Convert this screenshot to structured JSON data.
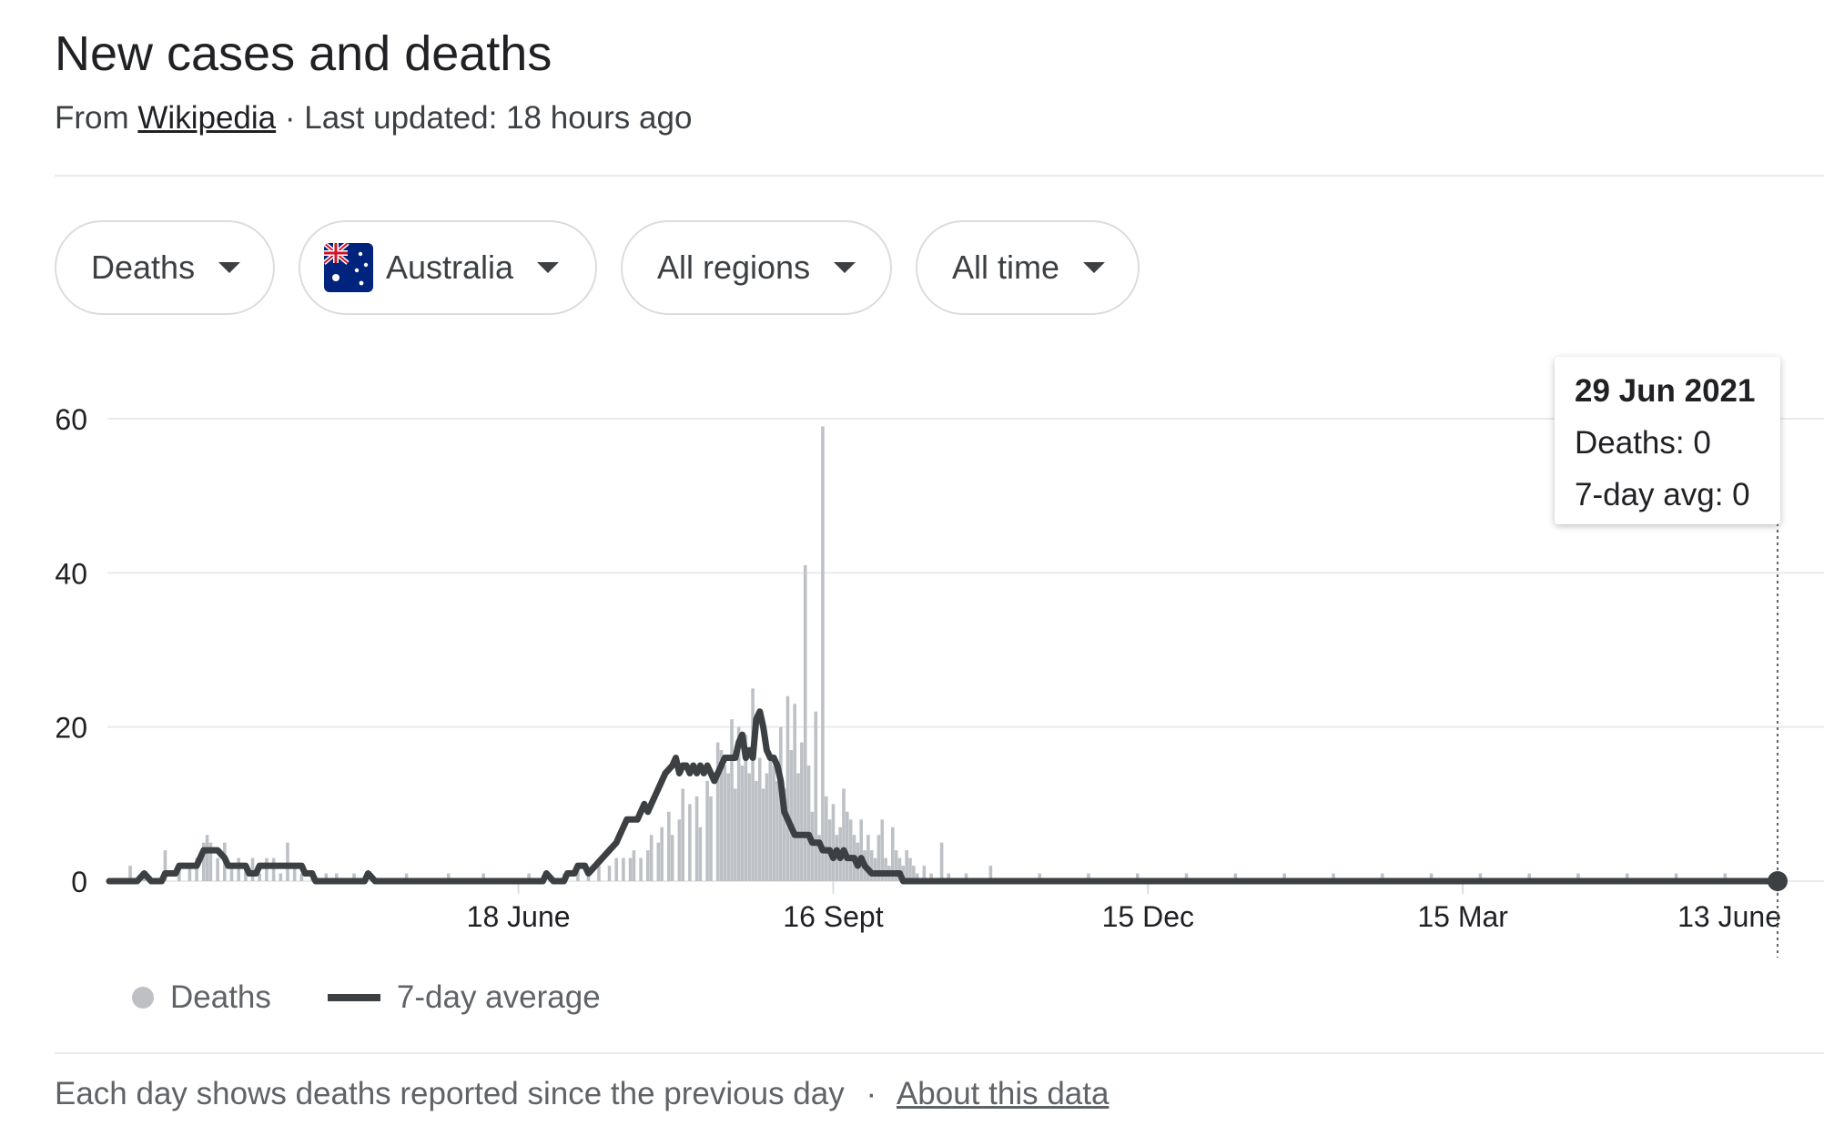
{
  "header": {
    "title": "New cases and deaths",
    "source_prefix": "From",
    "source_link": "Wikipedia",
    "updated": "· Last updated: 18 hours ago"
  },
  "filters": {
    "metric": "Deaths",
    "country": "Australia",
    "region": "All regions",
    "period": "All time"
  },
  "tooltip": {
    "date": "29 Jun 2021",
    "deaths": "Deaths: 0",
    "avg": "7-day avg: 0"
  },
  "legend": {
    "bars_label": "Deaths",
    "line_label": "7-day average"
  },
  "footer": {
    "note": "Each day shows deaths reported since the previous day",
    "separator": "·",
    "about_link": "About this data"
  },
  "colors": {
    "bars": "#bdc1c6",
    "line": "#3c4043",
    "grid": "#e8eaed"
  },
  "chart_data": {
    "type": "bar",
    "ylim": [
      0,
      60
    ],
    "yticks": [
      0,
      20,
      40,
      60
    ],
    "x_ticks": [
      {
        "label": "18 June",
        "day": 117
      },
      {
        "label": "16 Sept",
        "day": 207
      },
      {
        "label": "15 Dec",
        "day": 297
      },
      {
        "label": "15 Mar",
        "day": 387
      },
      {
        "label": "13 June",
        "day": 477
      }
    ],
    "x_start_date": "2020-02-21",
    "x_end_date": "2021-06-29",
    "series": [
      {
        "name": "Deaths",
        "kind": "bars",
        "points": [
          [
            6,
            2
          ],
          [
            10,
            1
          ],
          [
            16,
            4
          ],
          [
            20,
            2
          ],
          [
            23,
            2
          ],
          [
            25,
            3
          ],
          [
            27,
            5
          ],
          [
            28,
            6
          ],
          [
            29,
            5
          ],
          [
            31,
            3
          ],
          [
            33,
            5
          ],
          [
            35,
            2
          ],
          [
            37,
            3
          ],
          [
            39,
            2
          ],
          [
            41,
            3
          ],
          [
            43,
            1
          ],
          [
            45,
            3
          ],
          [
            47,
            3
          ],
          [
            49,
            1
          ],
          [
            51,
            5
          ],
          [
            53,
            2
          ],
          [
            55,
            1
          ],
          [
            58,
            1
          ],
          [
            62,
            1
          ],
          [
            65,
            1
          ],
          [
            70,
            1
          ],
          [
            75,
            1
          ],
          [
            85,
            1
          ],
          [
            97,
            1
          ],
          [
            107,
            1
          ],
          [
            120,
            1
          ],
          [
            130,
            1
          ],
          [
            134,
            2
          ],
          [
            137,
            1
          ],
          [
            140,
            2
          ],
          [
            143,
            2
          ],
          [
            145,
            3
          ],
          [
            147,
            3
          ],
          [
            149,
            3
          ],
          [
            150,
            4
          ],
          [
            152,
            3
          ],
          [
            154,
            4
          ],
          [
            155,
            6
          ],
          [
            157,
            5
          ],
          [
            158,
            7
          ],
          [
            160,
            9
          ],
          [
            161,
            6
          ],
          [
            163,
            8
          ],
          [
            164,
            12
          ],
          [
            166,
            10
          ],
          [
            168,
            11
          ],
          [
            169,
            7
          ],
          [
            171,
            13
          ],
          [
            172,
            11
          ],
          [
            174,
            18
          ],
          [
            175,
            17
          ],
          [
            176,
            15
          ],
          [
            177,
            14
          ],
          [
            178,
            21
          ],
          [
            179,
            12
          ],
          [
            180,
            20
          ],
          [
            181,
            15
          ],
          [
            182,
            19
          ],
          [
            183,
            14
          ],
          [
            184,
            25
          ],
          [
            185,
            13
          ],
          [
            186,
            16
          ],
          [
            187,
            12
          ],
          [
            188,
            14
          ],
          [
            189,
            16
          ],
          [
            190,
            15
          ],
          [
            191,
            13
          ],
          [
            192,
            20
          ],
          [
            193,
            12
          ],
          [
            194,
            24
          ],
          [
            195,
            17
          ],
          [
            196,
            23
          ],
          [
            197,
            14
          ],
          [
            198,
            18
          ],
          [
            199,
            41
          ],
          [
            200,
            15
          ],
          [
            201,
            9
          ],
          [
            202,
            22
          ],
          [
            203,
            6
          ],
          [
            204,
            59
          ],
          [
            205,
            11
          ],
          [
            206,
            8
          ],
          [
            207,
            10
          ],
          [
            208,
            6
          ],
          [
            209,
            7
          ],
          [
            210,
            12
          ],
          [
            211,
            9
          ],
          [
            212,
            8
          ],
          [
            213,
            6
          ],
          [
            214,
            5
          ],
          [
            215,
            8
          ],
          [
            216,
            4
          ],
          [
            217,
            6
          ],
          [
            218,
            4
          ],
          [
            219,
            3
          ],
          [
            220,
            6
          ],
          [
            221,
            8
          ],
          [
            222,
            3
          ],
          [
            223,
            2
          ],
          [
            224,
            7
          ],
          [
            225,
            4
          ],
          [
            226,
            3
          ],
          [
            227,
            2
          ],
          [
            228,
            4
          ],
          [
            229,
            3
          ],
          [
            230,
            2
          ],
          [
            231,
            1
          ],
          [
            233,
            2
          ],
          [
            235,
            1
          ],
          [
            238,
            5
          ],
          [
            240,
            1
          ],
          [
            245,
            1
          ],
          [
            252,
            2
          ],
          [
            266,
            1
          ],
          [
            280,
            1
          ],
          [
            294,
            1
          ],
          [
            308,
            1
          ],
          [
            322,
            1
          ],
          [
            336,
            1
          ],
          [
            350,
            1
          ],
          [
            364,
            1
          ],
          [
            378,
            1
          ],
          [
            392,
            1
          ],
          [
            406,
            1
          ],
          [
            420,
            1
          ],
          [
            434,
            1
          ],
          [
            448,
            1
          ],
          [
            462,
            1
          ]
        ]
      },
      {
        "name": "7-day average",
        "kind": "line",
        "points": [
          [
            0,
            0
          ],
          [
            8,
            0
          ],
          [
            10,
            1
          ],
          [
            12,
            0
          ],
          [
            15,
            0
          ],
          [
            16,
            1
          ],
          [
            19,
            1
          ],
          [
            20,
            2
          ],
          [
            25,
            2
          ],
          [
            26,
            3
          ],
          [
            27,
            4
          ],
          [
            31,
            4
          ],
          [
            33,
            3
          ],
          [
            34,
            2
          ],
          [
            39,
            2
          ],
          [
            40,
            1
          ],
          [
            42,
            1
          ],
          [
            43,
            2
          ],
          [
            45,
            2
          ],
          [
            55,
            2
          ],
          [
            56,
            1
          ],
          [
            58,
            1
          ],
          [
            59,
            0
          ],
          [
            73,
            0
          ],
          [
            74,
            1
          ],
          [
            76,
            0
          ],
          [
            124,
            0
          ],
          [
            125,
            1
          ],
          [
            127,
            0
          ],
          [
            130,
            0
          ],
          [
            131,
            1
          ],
          [
            133,
            1
          ],
          [
            134,
            2
          ],
          [
            136,
            2
          ],
          [
            137,
            1
          ],
          [
            139,
            2
          ],
          [
            141,
            3
          ],
          [
            143,
            4
          ],
          [
            145,
            5
          ],
          [
            146,
            6
          ],
          [
            147,
            7
          ],
          [
            148,
            8
          ],
          [
            151,
            8
          ],
          [
            152,
            9
          ],
          [
            153,
            10
          ],
          [
            154,
            9
          ],
          [
            155,
            10
          ],
          [
            157,
            12
          ],
          [
            159,
            14
          ],
          [
            161,
            15
          ],
          [
            162,
            16
          ],
          [
            163,
            14
          ],
          [
            164,
            15
          ],
          [
            165,
            15
          ],
          [
            166,
            14
          ],
          [
            167,
            15
          ],
          [
            168,
            14
          ],
          [
            169,
            15
          ],
          [
            170,
            14
          ],
          [
            171,
            15
          ],
          [
            172,
            14
          ],
          [
            173,
            13
          ],
          [
            174,
            14
          ],
          [
            175,
            15
          ],
          [
            176,
            16
          ],
          [
            179,
            16
          ],
          [
            180,
            18
          ],
          [
            181,
            19
          ],
          [
            182,
            16
          ],
          [
            183,
            17
          ],
          [
            184,
            16
          ],
          [
            185,
            21
          ],
          [
            186,
            22
          ],
          [
            187,
            20
          ],
          [
            188,
            17
          ],
          [
            189,
            16
          ],
          [
            190,
            16
          ],
          [
            191,
            15
          ],
          [
            192,
            13
          ],
          [
            193,
            9
          ],
          [
            194,
            8
          ],
          [
            195,
            7
          ],
          [
            196,
            6
          ],
          [
            200,
            6
          ],
          [
            201,
            5
          ],
          [
            203,
            5
          ],
          [
            204,
            4
          ],
          [
            206,
            4
          ],
          [
            207,
            3
          ],
          [
            208,
            4
          ],
          [
            209,
            3
          ],
          [
            210,
            4
          ],
          [
            211,
            3
          ],
          [
            213,
            3
          ],
          [
            214,
            2
          ],
          [
            215,
            3
          ],
          [
            216,
            2
          ],
          [
            218,
            1
          ],
          [
            226,
            1
          ],
          [
            227,
            0
          ],
          [
            477,
            0
          ]
        ]
      }
    ]
  }
}
